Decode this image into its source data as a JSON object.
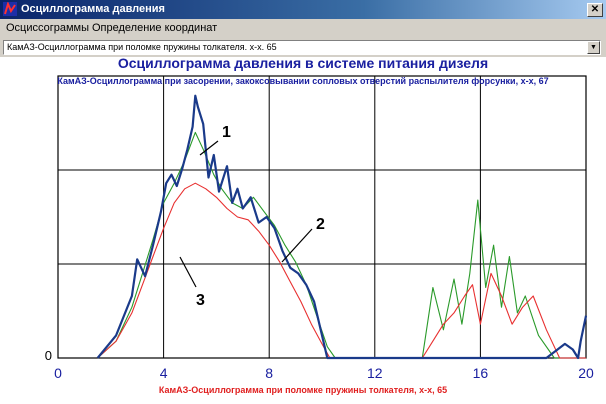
{
  "window": {
    "title": "Осциллограмма давления",
    "close_label": "✕"
  },
  "menu": {
    "items": [
      "Осциссограммы",
      "Определение координат"
    ]
  },
  "selector": {
    "value": "КамАЗ-Осциллограмма при поломке пружины толкателя. х-х. 65"
  },
  "chart": {
    "title": "Осциллограмма давления в системе питания дизеля",
    "subtitle": "КамАЗ-Осциллограмма при засорении, закоксовывании сопловых отверстий распылителя форсунки, х-х, 67",
    "footer": "КамАЗ-Осциллограмма при поломке пружины толкателя, х-х, 65"
  },
  "chart_data": {
    "type": "line",
    "xlim": [
      0,
      20
    ],
    "ylim": [
      0,
      1
    ],
    "x_ticks": [
      "0",
      "4",
      "8",
      "12",
      "16",
      "20"
    ],
    "y_ticks": [
      "0"
    ],
    "grid": true,
    "annotations": [
      "1",
      "2",
      "3"
    ],
    "series": [
      {
        "color": "#1a3a8a",
        "points": [
          [
            1.5,
            0
          ],
          [
            2.2,
            0.08
          ],
          [
            2.8,
            0.22
          ],
          [
            3.0,
            0.35
          ],
          [
            3.3,
            0.29
          ],
          [
            3.6,
            0.4
          ],
          [
            3.9,
            0.52
          ],
          [
            4.1,
            0.62
          ],
          [
            4.3,
            0.65
          ],
          [
            4.5,
            0.61
          ],
          [
            4.7,
            0.67
          ],
          [
            4.9,
            0.74
          ],
          [
            5.1,
            0.82
          ],
          [
            5.2,
            0.93
          ],
          [
            5.3,
            0.89
          ],
          [
            5.5,
            0.83
          ],
          [
            5.7,
            0.64
          ],
          [
            5.9,
            0.72
          ],
          [
            6.1,
            0.59
          ],
          [
            6.4,
            0.68
          ],
          [
            6.6,
            0.55
          ],
          [
            6.8,
            0.6
          ],
          [
            7.0,
            0.53
          ],
          [
            7.3,
            0.57
          ],
          [
            7.6,
            0.48
          ],
          [
            7.9,
            0.5
          ],
          [
            8.2,
            0.46
          ],
          [
            8.5,
            0.38
          ],
          [
            8.8,
            0.32
          ],
          [
            9.1,
            0.3
          ],
          [
            9.4,
            0.26
          ],
          [
            9.7,
            0.2
          ],
          [
            10.0,
            0.08
          ],
          [
            10.2,
            0.0
          ],
          [
            18.5,
            0.0
          ],
          [
            19.2,
            0.05
          ],
          [
            19.5,
            0.03
          ],
          [
            19.7,
            0.0
          ],
          [
            19.8,
            0.06
          ],
          [
            20.0,
            0.15
          ]
        ]
      },
      {
        "color": "#2a9a2a",
        "points": [
          [
            1.5,
            0
          ],
          [
            2.2,
            0.06
          ],
          [
            2.8,
            0.18
          ],
          [
            3.2,
            0.3
          ],
          [
            3.6,
            0.42
          ],
          [
            4.0,
            0.55
          ],
          [
            4.4,
            0.62
          ],
          [
            4.8,
            0.7
          ],
          [
            5.2,
            0.8
          ],
          [
            5.5,
            0.74
          ],
          [
            5.9,
            0.65
          ],
          [
            6.2,
            0.6
          ],
          [
            6.6,
            0.55
          ],
          [
            7.0,
            0.53
          ],
          [
            7.4,
            0.57
          ],
          [
            7.8,
            0.52
          ],
          [
            8.2,
            0.47
          ],
          [
            8.6,
            0.4
          ],
          [
            9.0,
            0.34
          ],
          [
            9.4,
            0.26
          ],
          [
            9.8,
            0.15
          ],
          [
            10.2,
            0.04
          ],
          [
            10.5,
            0.0
          ],
          [
            13.8,
            0.0
          ],
          [
            14.2,
            0.25
          ],
          [
            14.6,
            0.1
          ],
          [
            15.0,
            0.28
          ],
          [
            15.3,
            0.12
          ],
          [
            15.6,
            0.3
          ],
          [
            15.9,
            0.56
          ],
          [
            16.2,
            0.25
          ],
          [
            16.5,
            0.4
          ],
          [
            16.8,
            0.18
          ],
          [
            17.1,
            0.36
          ],
          [
            17.4,
            0.16
          ],
          [
            17.7,
            0.22
          ],
          [
            18.2,
            0.08
          ],
          [
            18.8,
            0.0
          ],
          [
            20.0,
            0.0
          ]
        ]
      },
      {
        "color": "#e83030",
        "points": [
          [
            1.5,
            0
          ],
          [
            2.2,
            0.06
          ],
          [
            2.8,
            0.16
          ],
          [
            3.2,
            0.26
          ],
          [
            3.6,
            0.36
          ],
          [
            4.0,
            0.46
          ],
          [
            4.4,
            0.55
          ],
          [
            4.8,
            0.6
          ],
          [
            5.2,
            0.62
          ],
          [
            5.6,
            0.6
          ],
          [
            6.0,
            0.57
          ],
          [
            6.4,
            0.53
          ],
          [
            6.8,
            0.5
          ],
          [
            7.2,
            0.49
          ],
          [
            7.6,
            0.45
          ],
          [
            8.0,
            0.4
          ],
          [
            8.4,
            0.34
          ],
          [
            8.8,
            0.27
          ],
          [
            9.2,
            0.2
          ],
          [
            9.6,
            0.12
          ],
          [
            10.0,
            0.05
          ],
          [
            10.3,
            0.0
          ],
          [
            13.8,
            0.0
          ],
          [
            14.2,
            0.06
          ],
          [
            14.6,
            0.12
          ],
          [
            15.0,
            0.16
          ],
          [
            15.4,
            0.22
          ],
          [
            15.7,
            0.26
          ],
          [
            16.0,
            0.12
          ],
          [
            16.4,
            0.3
          ],
          [
            16.8,
            0.22
          ],
          [
            17.2,
            0.12
          ],
          [
            17.6,
            0.18
          ],
          [
            18.0,
            0.22
          ],
          [
            18.5,
            0.1
          ],
          [
            19.0,
            0.0
          ],
          [
            20.0,
            0.0
          ]
        ]
      }
    ]
  }
}
